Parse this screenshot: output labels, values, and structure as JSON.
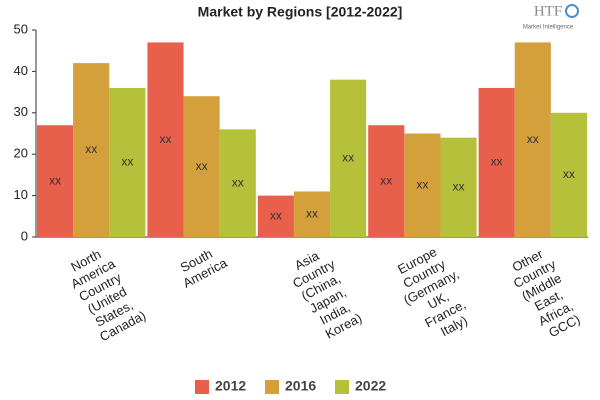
{
  "chart_data": {
    "type": "bar",
    "title": "Market by Regions [2012-2022]",
    "categories": [
      "North America Country (United States, Canada)",
      "South America",
      "Asia Country (China, Japan, India, Korea)",
      "Europe Country (Germany, UK, France, Italy)",
      "Other Country (Middle East, Africa, GCC)"
    ],
    "series": [
      {
        "name": "2012",
        "color": "#e8604c",
        "values": [
          27,
          47,
          10,
          27,
          36
        ],
        "value_labels": [
          "xx",
          "xx",
          "xx",
          "xx",
          "xx"
        ]
      },
      {
        "name": "2016",
        "color": "#d4a03c",
        "values": [
          42,
          34,
          11,
          25,
          47
        ],
        "value_labels": [
          "xx",
          "xx",
          "xx",
          "xx",
          "xx"
        ]
      },
      {
        "name": "2022",
        "color": "#b5c13a",
        "values": [
          36,
          26,
          38,
          24,
          30
        ],
        "value_labels": [
          "xx",
          "xx",
          "xx",
          "xx",
          "xx"
        ]
      }
    ],
    "ylim": [
      0,
      50
    ],
    "yticks": [
      0,
      10,
      20,
      30,
      40,
      50
    ],
    "grid": false,
    "legend": "bottom"
  },
  "logo": {
    "name": "HTF",
    "tagline": "Market Intelligence"
  }
}
